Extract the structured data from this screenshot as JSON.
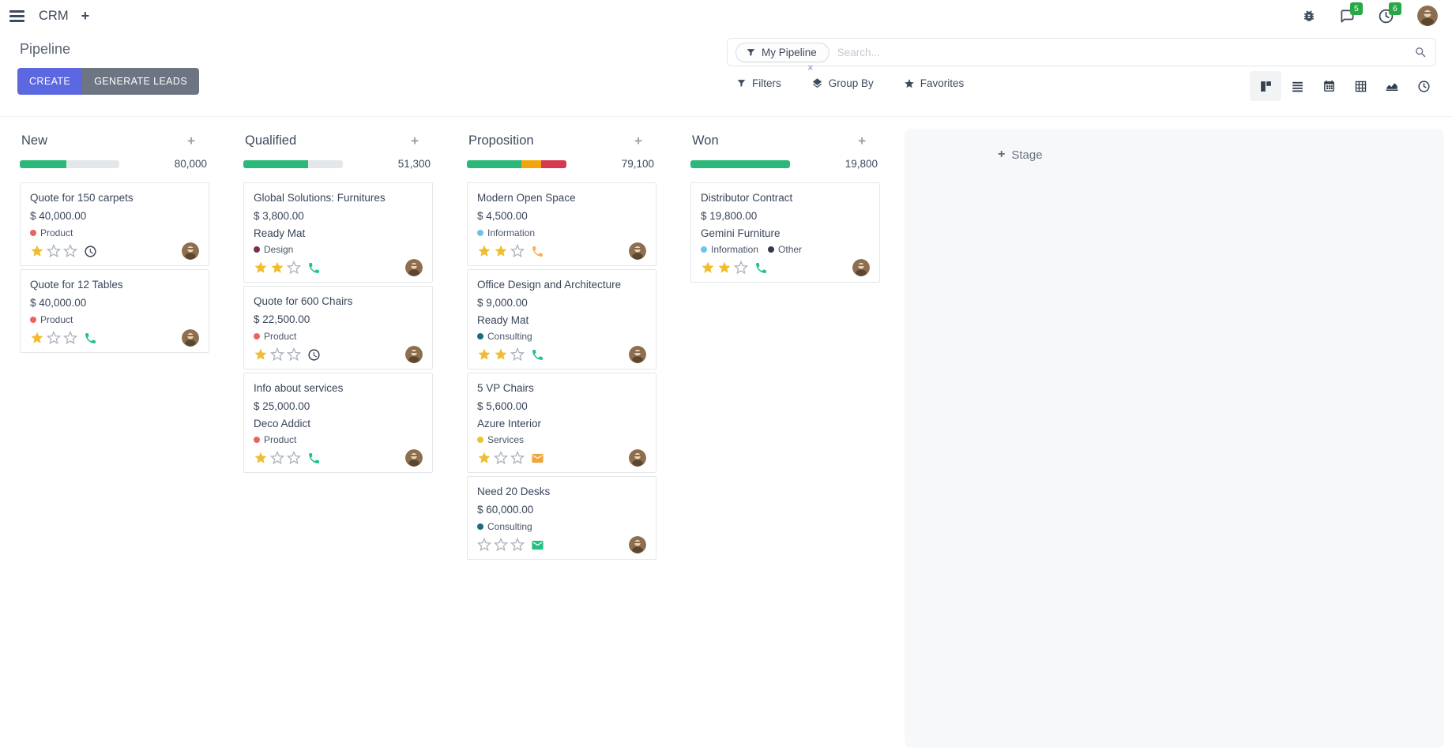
{
  "navbar": {
    "app_name": "CRM",
    "messages_badge": "5",
    "activities_badge": "6"
  },
  "control_panel": {
    "title": "Pipeline",
    "create_label": "CREATE",
    "generate_leads_label": "GENERATE LEADS",
    "filters_label": "Filters",
    "group_by_label": "Group By",
    "favorites_label": "Favorites",
    "search": {
      "facet_label": "My Pipeline",
      "placeholder": "Search...",
      "remove_facet_glyph": "×"
    }
  },
  "board": {
    "add_stage_plus": "+",
    "add_stage_label": "Stage",
    "columns": [
      {
        "name": "New",
        "total": "80,000",
        "progress": [
          {
            "color": "#2cb878",
            "pct": 47
          }
        ],
        "cards": [
          {
            "title": "Quote for 150 carpets",
            "amount": "$ 40,000.00",
            "partner": "",
            "tags": [
              "Product"
            ],
            "stars": 1,
            "action": "clock"
          },
          {
            "title": "Quote for 12 Tables",
            "amount": "$ 40,000.00",
            "partner": "",
            "tags": [
              "Product"
            ],
            "stars": 1,
            "action": "phone-green"
          }
        ]
      },
      {
        "name": "Qualified",
        "total": "51,300",
        "progress": [
          {
            "color": "#2cb878",
            "pct": 65
          }
        ],
        "cards": [
          {
            "title": "Global Solutions: Furnitures",
            "amount": "$ 3,800.00",
            "partner": "Ready Mat",
            "tags": [
              "Design"
            ],
            "stars": 2,
            "action": "phone-green"
          },
          {
            "title": "Quote for 600 Chairs",
            "amount": "$ 22,500.00",
            "partner": "",
            "tags": [
              "Product"
            ],
            "stars": 1,
            "action": "clock"
          },
          {
            "title": "Info about services",
            "amount": "$ 25,000.00",
            "partner": "Deco Addict",
            "tags": [
              "Product"
            ],
            "stars": 1,
            "action": "phone-green"
          }
        ]
      },
      {
        "name": "Proposition",
        "total": "79,100",
        "progress": [
          {
            "color": "#2cb878",
            "pct": 55
          },
          {
            "color": "#f1a70c",
            "pct": 20
          },
          {
            "color": "#d6394f",
            "pct": 25
          }
        ],
        "cards": [
          {
            "title": "Modern Open Space",
            "amount": "$ 4,500.00",
            "partner": "",
            "tags": [
              "Information"
            ],
            "stars": 2,
            "action": "phone-orange"
          },
          {
            "title": "Office Design and Architecture",
            "amount": "$ 9,000.00",
            "partner": "Ready Mat",
            "tags": [
              "Consulting"
            ],
            "stars": 2,
            "action": "phone-green"
          },
          {
            "title": "5 VP Chairs",
            "amount": "$ 5,600.00",
            "partner": "Azure Interior",
            "tags": [
              "Services"
            ],
            "stars": 1,
            "action": "mail-orange"
          },
          {
            "title": "Need 20 Desks",
            "amount": "$ 60,000.00",
            "partner": "",
            "tags": [
              "Consulting"
            ],
            "stars": 0,
            "action": "mail-green"
          }
        ]
      },
      {
        "name": "Won",
        "total": "19,800",
        "progress": [
          {
            "color": "#2cb878",
            "pct": 100
          }
        ],
        "cards": [
          {
            "title": "Distributor Contract",
            "amount": "$ 19,800.00",
            "partner": "Gemini Furniture",
            "tags": [
              "Information",
              "Other"
            ],
            "stars": 2,
            "action": "phone-green"
          }
        ]
      }
    ]
  },
  "colors": {
    "accent": "#5b68e0",
    "secondary_button": "#6e7582",
    "progress_track": "#e3e7ea",
    "star_filled": "#efbd2d",
    "star_empty": "#aab1b9",
    "badge_green": "#28a745",
    "tags": {
      "Product": "#e8655f",
      "Design": "#7d2e57",
      "Information": "#6ec2ee",
      "Consulting": "#1a6d80",
      "Services": "#e9c42f",
      "Other": "#303a4b"
    },
    "actions": {
      "clock": "#333f51",
      "phone-green": "#1fc091",
      "phone-orange": "#f4ae5c",
      "mail-orange": "#eda53c",
      "mail-green": "#25c084"
    }
  }
}
